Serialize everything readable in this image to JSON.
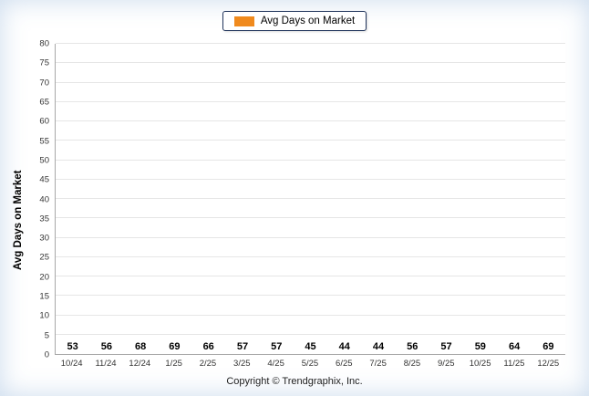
{
  "legend": {
    "label": "Avg Days on Market"
  },
  "footer": {
    "copyright": "Copyright © Trendgraphix, Inc."
  },
  "chart_data": {
    "type": "bar",
    "categories": [
      "10/24",
      "11/24",
      "12/24",
      "1/25",
      "2/25",
      "3/25",
      "4/25",
      "5/25",
      "6/25",
      "7/25",
      "8/25",
      "9/25",
      "10/25",
      "11/25",
      "12/25"
    ],
    "values": [
      53,
      56,
      68,
      69,
      66,
      57,
      57,
      45,
      44,
      44,
      56,
      57,
      59,
      64,
      69
    ],
    "title": "Avg Days on Market",
    "xlabel": "",
    "ylabel": "Avg Days on Market",
    "ylim": [
      0,
      80
    ],
    "ytick_step": 5,
    "bar_color": "#F08A1D",
    "grid": true,
    "legend_position": "top"
  }
}
